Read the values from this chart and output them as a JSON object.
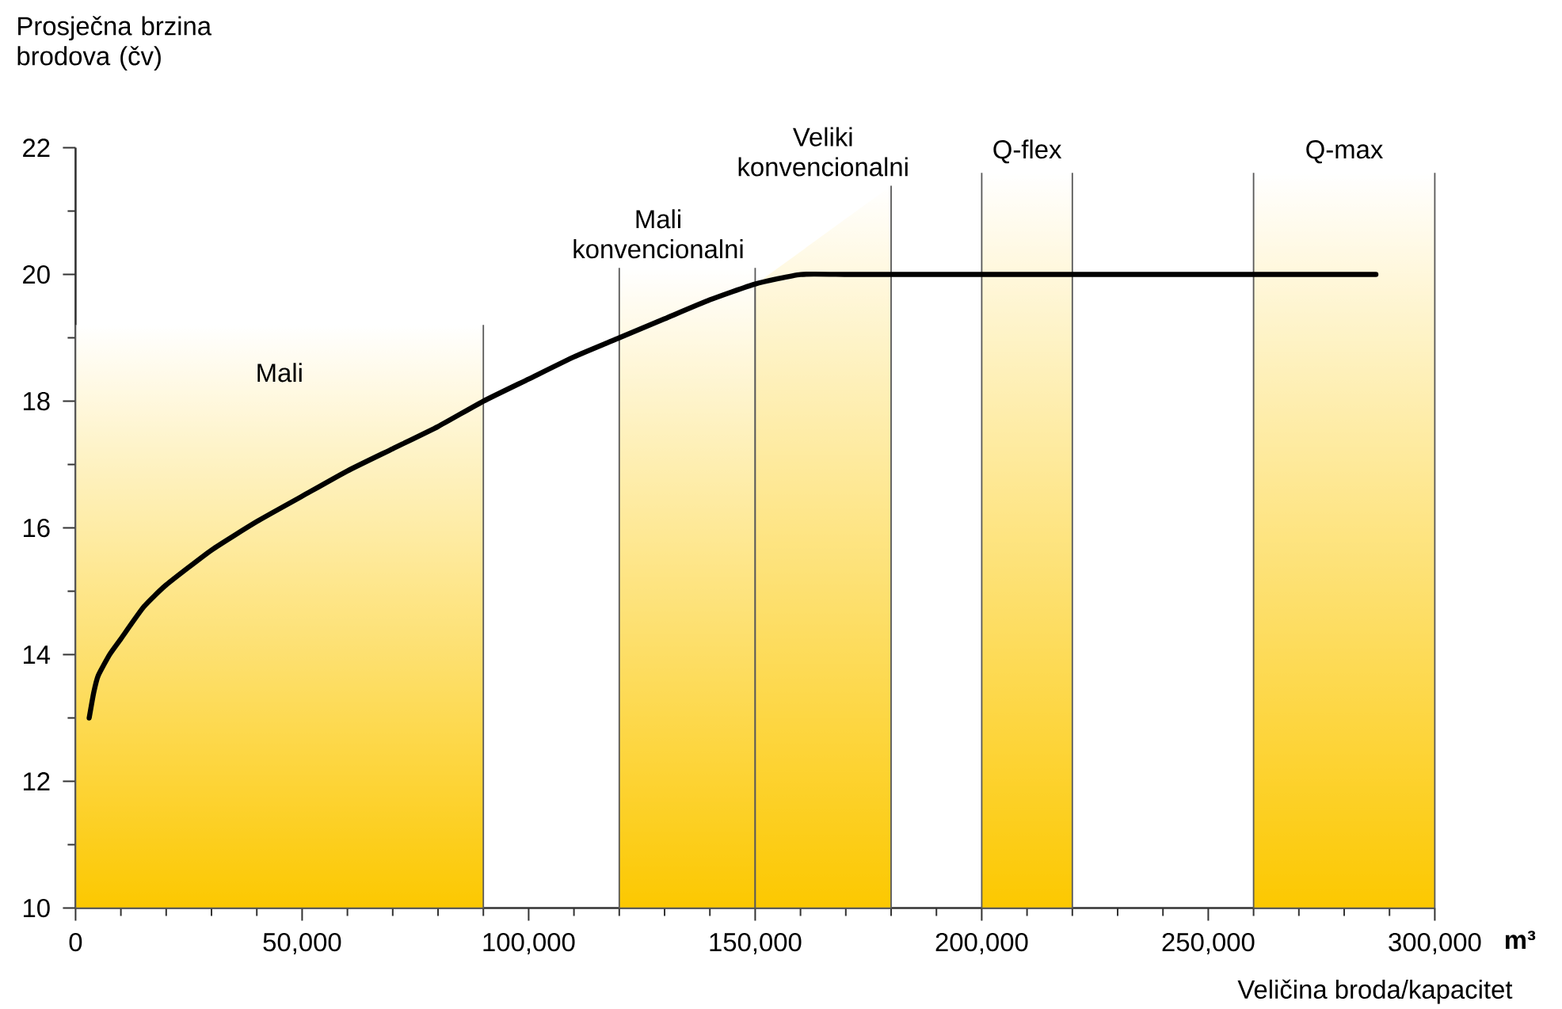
{
  "chart_data": {
    "type": "line",
    "ylabel": "Prosječna brzina brodova (čv)",
    "xlabel": "Veličina broda/kapacitet",
    "annotations": [
      "m³"
    ],
    "x": [
      3000,
      4000,
      5000,
      7500,
      10000,
      15000,
      20000,
      30000,
      40000,
      50000,
      60000,
      70000,
      80000,
      90000,
      100000,
      110000,
      120000,
      130000,
      140000,
      150000,
      160000,
      170000,
      180000,
      200000,
      287000
    ],
    "series": [
      {
        "color": "#000000",
        "values": [
          13.0,
          13.4,
          13.67,
          14.0,
          14.25,
          14.75,
          15.1,
          15.65,
          16.1,
          16.5,
          16.9,
          17.25,
          17.6,
          18.0,
          18.35,
          18.7,
          19.0,
          19.3,
          19.6,
          19.85,
          20.0,
          20.0,
          20.0,
          20.0,
          20.0
        ]
      }
    ],
    "xlim": [
      0,
      300000
    ],
    "ylim": [
      10,
      22
    ],
    "xticks": [
      0,
      {
        "value": 50000,
        "label": "50,000"
      },
      {
        "value": 100000,
        "label": "100,000"
      },
      {
        "value": 150000,
        "label": "150,000"
      },
      {
        "value": 200000,
        "label": "200,000"
      },
      {
        "value": 250000,
        "label": "250,000"
      },
      {
        "value": 300000,
        "label": "300,000"
      }
    ],
    "yticks": [
      10,
      12,
      14,
      16,
      18,
      20,
      22
    ],
    "bands": [
      {
        "axis": "x",
        "from": 0,
        "to": 90000,
        "label": "Mali",
        "color": "#fcc800"
      },
      {
        "axis": "x",
        "from": 120000,
        "to": 150000,
        "label": "Mali konvencionalni",
        "color": "#fcc800"
      },
      {
        "axis": "x",
        "from": 150000,
        "to": 180000,
        "label": "Veliki konvencionalni",
        "color": "#fcc800"
      },
      {
        "axis": "x",
        "from": 200000,
        "to": 220000,
        "label": "Q-flex",
        "color": "#fcc800"
      },
      {
        "axis": "x",
        "from": 260000,
        "to": 300000,
        "label": "Q-max",
        "color": "#fcc800"
      }
    ]
  }
}
